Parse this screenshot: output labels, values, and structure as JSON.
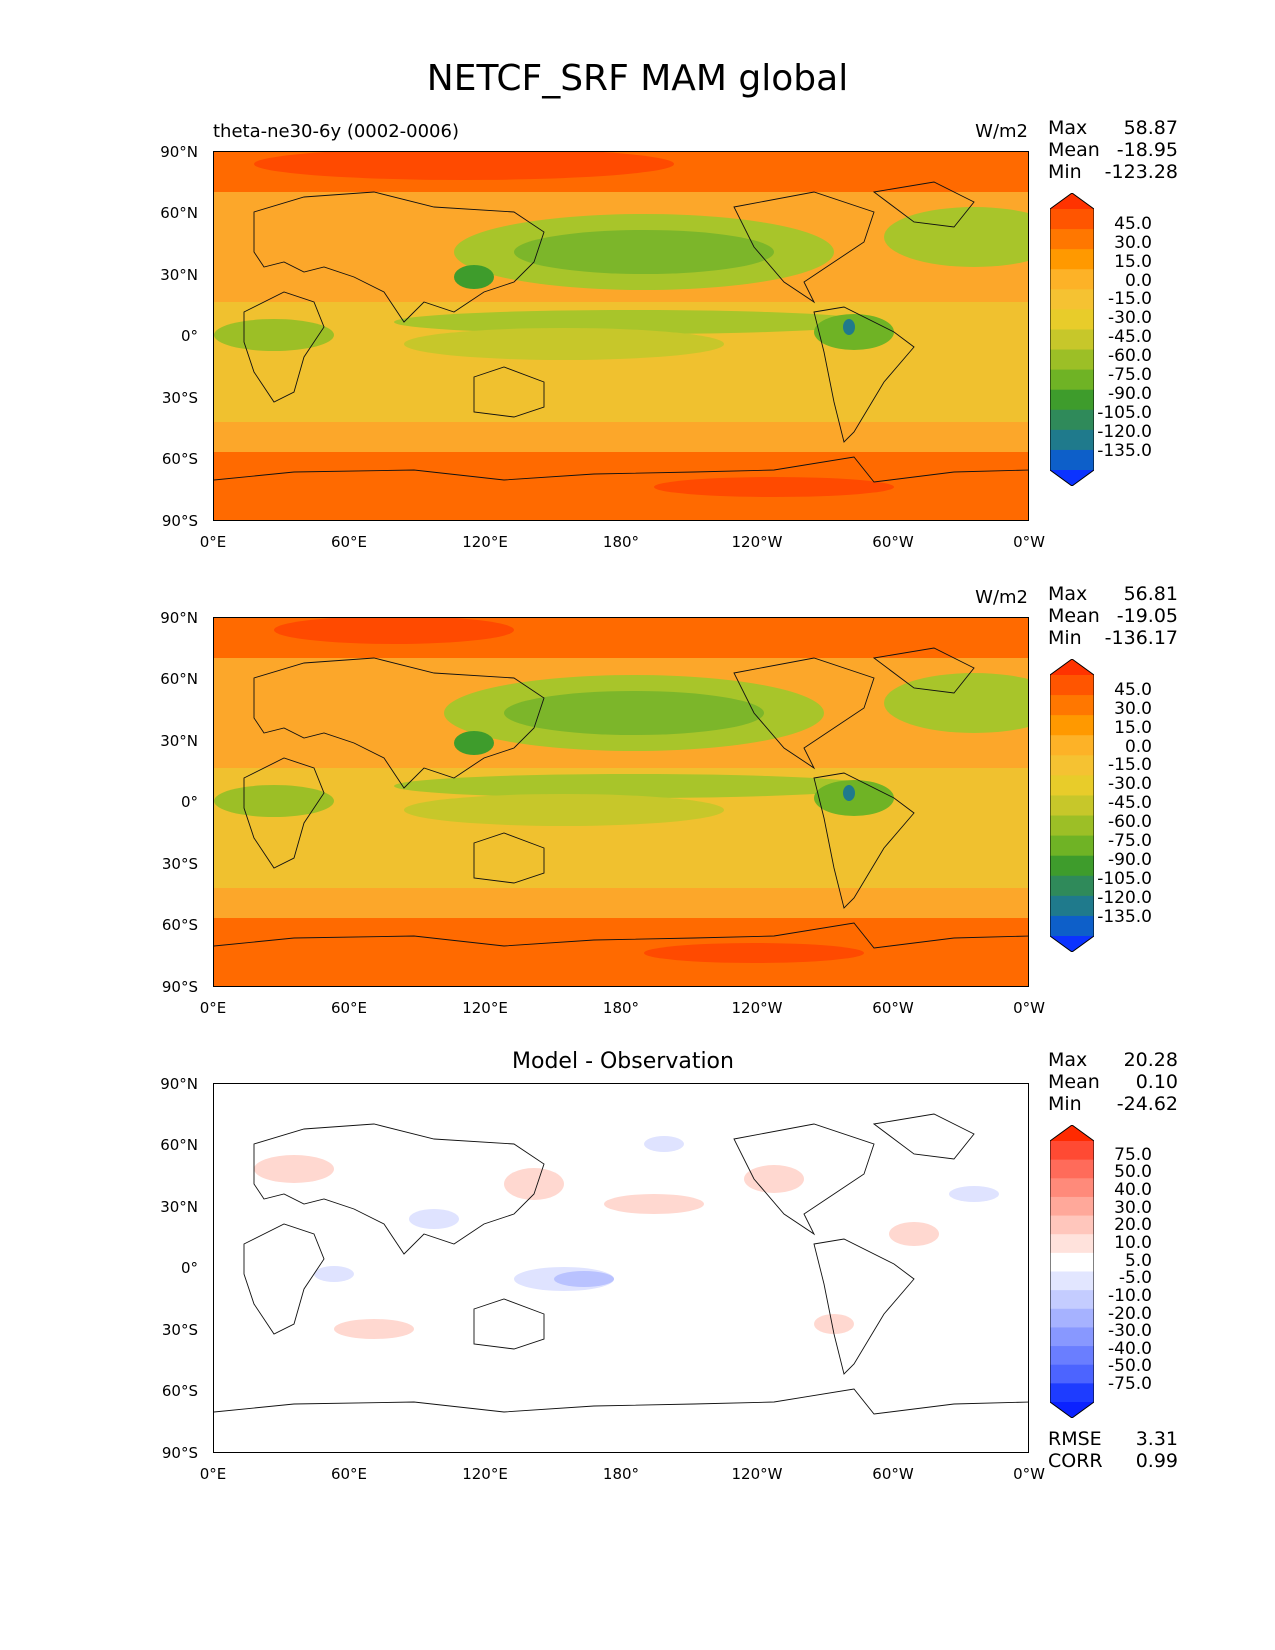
{
  "figure": {
    "title": "NETCF_SRF MAM global"
  },
  "axes": {
    "lat_ticks": [
      "90°N",
      "60°N",
      "30°N",
      "0°",
      "30°S",
      "60°S",
      "90°S"
    ],
    "lon_ticks": [
      "0°E",
      "60°E",
      "120°E",
      "180°",
      "120°W",
      "60°W",
      "0°W"
    ]
  },
  "panels": [
    {
      "left_title": "theta-ne30-6y (0002-0006)",
      "center_title": "",
      "units": "W/m2",
      "stats": [
        {
          "label": "Max",
          "value": "58.87"
        },
        {
          "label": "Mean",
          "value": "-18.95"
        },
        {
          "label": "Min",
          "value": "-123.28"
        }
      ],
      "colorbar": {
        "labels": [
          "45.0",
          "30.0",
          "15.0",
          "0.0",
          "-15.0",
          "-30.0",
          "-45.0",
          "-60.0",
          "-75.0",
          "-90.0",
          "-105.0",
          "-120.0",
          "-135.0"
        ],
        "colors": [
          "#ff3300",
          "#ff5500",
          "#ff7700",
          "#ff9900",
          "#fdb227",
          "#f5c232",
          "#e8cc2a",
          "#c7c72a",
          "#9cbf26",
          "#6fb325",
          "#3e9c2c",
          "#2f8a5a",
          "#1f7a8c",
          "#0d5fc9",
          "#0b33ff"
        ]
      }
    },
    {
      "left_title": "",
      "center_title": "",
      "units": "W/m2",
      "stats": [
        {
          "label": "Max",
          "value": "56.81"
        },
        {
          "label": "Mean",
          "value": "-19.05"
        },
        {
          "label": "Min",
          "value": "-136.17"
        }
      ],
      "colorbar": {
        "labels": [
          "45.0",
          "30.0",
          "15.0",
          "0.0",
          "-15.0",
          "-30.0",
          "-45.0",
          "-60.0",
          "-75.0",
          "-90.0",
          "-105.0",
          "-120.0",
          "-135.0"
        ],
        "colors": [
          "#ff3300",
          "#ff5500",
          "#ff7700",
          "#ff9900",
          "#fdb227",
          "#f5c232",
          "#e8cc2a",
          "#c7c72a",
          "#9cbf26",
          "#6fb325",
          "#3e9c2c",
          "#2f8a5a",
          "#1f7a8c",
          "#0d5fc9",
          "#0b33ff"
        ]
      }
    },
    {
      "left_title": "",
      "center_title": "Model - Observation",
      "units": "",
      "stats": [
        {
          "label": "Max",
          "value": "20.28"
        },
        {
          "label": "Mean",
          "value": "0.10"
        },
        {
          "label": "Min",
          "value": "-24.62"
        }
      ],
      "extra_stats": [
        {
          "label": "RMSE",
          "value": "3.31"
        },
        {
          "label": "CORR",
          "value": "0.99"
        }
      ],
      "colorbar": {
        "labels": [
          "75.0",
          "50.0",
          "40.0",
          "30.0",
          "20.0",
          "10.0",
          "5.0",
          "-5.0",
          "-10.0",
          "-20.0",
          "-30.0",
          "-40.0",
          "-50.0",
          "-75.0"
        ],
        "colors": [
          "#ff2a00",
          "#ff4a33",
          "#ff6b5a",
          "#ff8a7a",
          "#ffa89a",
          "#ffc6bc",
          "#ffe2dc",
          "#ffffff",
          "#e2e6ff",
          "#c4ccff",
          "#a6b2ff",
          "#8898ff",
          "#6a7eff",
          "#4c64ff",
          "#1e3cff",
          "#0b22ff"
        ]
      }
    }
  ]
}
